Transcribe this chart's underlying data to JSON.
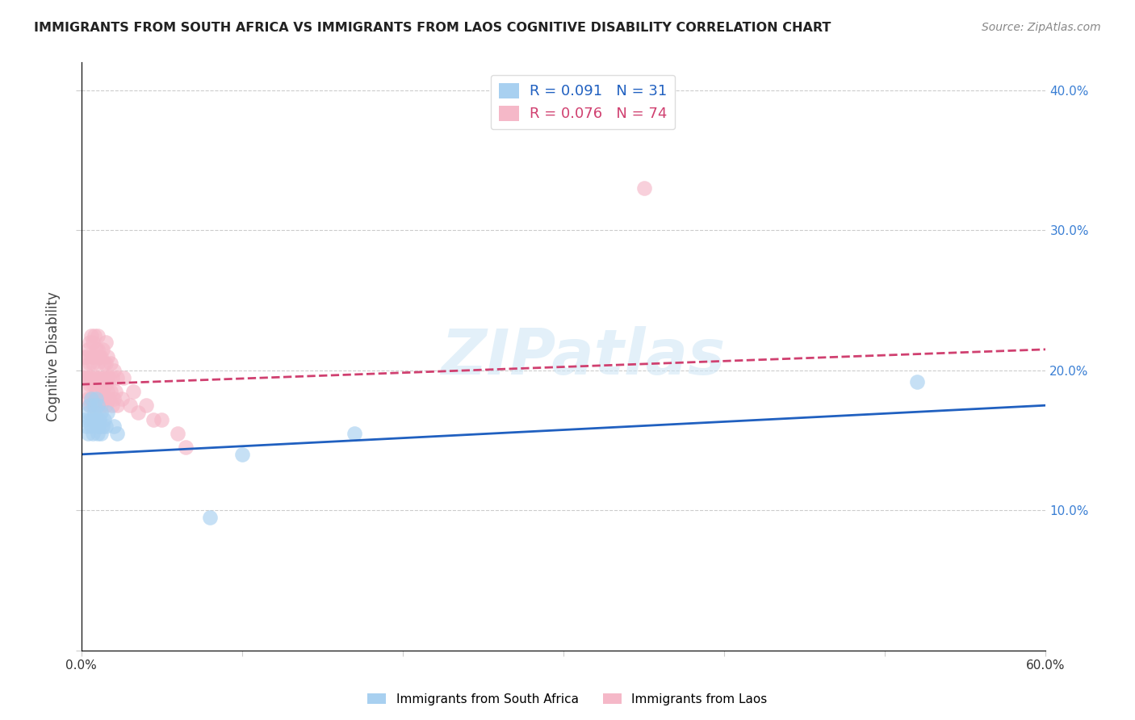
{
  "title": "IMMIGRANTS FROM SOUTH AFRICA VS IMMIGRANTS FROM LAOS COGNITIVE DISABILITY CORRELATION CHART",
  "source": "Source: ZipAtlas.com",
  "ylabel": "Cognitive Disability",
  "xlim": [
    0.0,
    0.6
  ],
  "ylim": [
    0.0,
    0.42
  ],
  "legend_label1": "Immigrants from South Africa",
  "legend_label2": "Immigrants from Laos",
  "R1": 0.091,
  "N1": 31,
  "R2": 0.076,
  "N2": 74,
  "color1": "#a8d0f0",
  "color2": "#f5b8c8",
  "line_color1": "#2060c0",
  "line_color2": "#d04070",
  "watermark": "ZIPatlas",
  "south_africa_x": [
    0.002,
    0.003,
    0.004,
    0.004,
    0.005,
    0.005,
    0.006,
    0.006,
    0.007,
    0.007,
    0.008,
    0.008,
    0.009,
    0.009,
    0.01,
    0.01,
    0.01,
    0.011,
    0.011,
    0.012,
    0.012,
    0.013,
    0.014,
    0.015,
    0.016,
    0.02,
    0.022,
    0.08,
    0.1,
    0.17,
    0.52
  ],
  "south_africa_y": [
    0.165,
    0.16,
    0.17,
    0.155,
    0.175,
    0.165,
    0.18,
    0.16,
    0.155,
    0.165,
    0.17,
    0.175,
    0.18,
    0.165,
    0.175,
    0.16,
    0.155,
    0.16,
    0.165,
    0.17,
    0.155,
    0.16,
    0.165,
    0.16,
    0.17,
    0.16,
    0.155,
    0.095,
    0.14,
    0.155,
    0.192
  ],
  "laos_x": [
    0.001,
    0.002,
    0.002,
    0.003,
    0.003,
    0.003,
    0.004,
    0.004,
    0.004,
    0.005,
    0.005,
    0.005,
    0.005,
    0.006,
    0.006,
    0.006,
    0.006,
    0.007,
    0.007,
    0.007,
    0.007,
    0.008,
    0.008,
    0.008,
    0.008,
    0.009,
    0.009,
    0.009,
    0.01,
    0.01,
    0.01,
    0.01,
    0.01,
    0.011,
    0.011,
    0.011,
    0.012,
    0.012,
    0.012,
    0.013,
    0.013,
    0.013,
    0.014,
    0.014,
    0.014,
    0.015,
    0.015,
    0.015,
    0.015,
    0.016,
    0.016,
    0.016,
    0.017,
    0.017,
    0.018,
    0.018,
    0.019,
    0.019,
    0.02,
    0.02,
    0.021,
    0.022,
    0.022,
    0.025,
    0.026,
    0.03,
    0.032,
    0.035,
    0.04,
    0.045,
    0.05,
    0.06,
    0.065,
    0.35
  ],
  "laos_y": [
    0.195,
    0.2,
    0.21,
    0.185,
    0.195,
    0.21,
    0.18,
    0.195,
    0.215,
    0.175,
    0.19,
    0.205,
    0.22,
    0.18,
    0.195,
    0.21,
    0.225,
    0.175,
    0.19,
    0.205,
    0.22,
    0.18,
    0.195,
    0.21,
    0.225,
    0.185,
    0.195,
    0.215,
    0.175,
    0.19,
    0.205,
    0.215,
    0.225,
    0.18,
    0.195,
    0.21,
    0.175,
    0.19,
    0.21,
    0.185,
    0.195,
    0.215,
    0.18,
    0.195,
    0.205,
    0.175,
    0.19,
    0.205,
    0.22,
    0.185,
    0.195,
    0.21,
    0.18,
    0.195,
    0.185,
    0.205,
    0.175,
    0.195,
    0.18,
    0.2,
    0.185,
    0.175,
    0.195,
    0.18,
    0.195,
    0.175,
    0.185,
    0.17,
    0.175,
    0.165,
    0.165,
    0.155,
    0.145,
    0.33
  ]
}
